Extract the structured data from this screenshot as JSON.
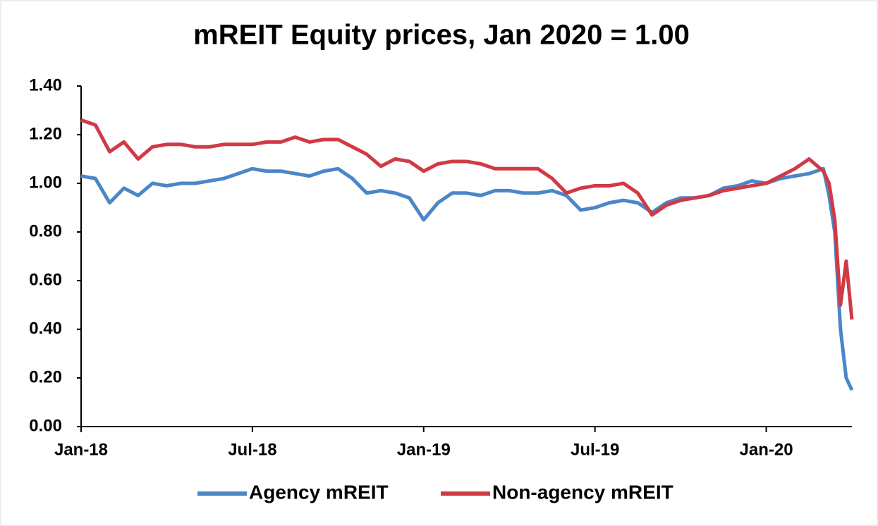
{
  "chart_data": {
    "type": "line",
    "title": "mREIT Equity prices, Jan 2020 = 1.00",
    "x": [
      0,
      0.5,
      1,
      1.5,
      2,
      2.5,
      3,
      3.5,
      4,
      4.5,
      5,
      5.5,
      6,
      6.5,
      7,
      7.5,
      8,
      8.5,
      9,
      9.5,
      10,
      10.5,
      11,
      11.5,
      12,
      12.5,
      13,
      13.5,
      14,
      14.5,
      15,
      15.5,
      16,
      16.5,
      17,
      17.5,
      18,
      18.5,
      19,
      19.5,
      20,
      20.5,
      21,
      21.5,
      22,
      22.5,
      23,
      23.5,
      24,
      24.5,
      25,
      25.5,
      26,
      26.2,
      26.4,
      26.6,
      26.8,
      27
    ],
    "series": [
      {
        "name": "Agency mREIT",
        "color": "#4a86c8",
        "values": [
          1.03,
          1.02,
          0.92,
          0.98,
          0.95,
          1.0,
          0.99,
          1.0,
          1.0,
          1.01,
          1.02,
          1.04,
          1.06,
          1.05,
          1.05,
          1.04,
          1.03,
          1.05,
          1.06,
          1.02,
          0.96,
          0.97,
          0.96,
          0.94,
          0.85,
          0.92,
          0.96,
          0.96,
          0.95,
          0.97,
          0.97,
          0.96,
          0.96,
          0.97,
          0.95,
          0.89,
          0.9,
          0.92,
          0.93,
          0.92,
          0.88,
          0.92,
          0.94,
          0.94,
          0.95,
          0.98,
          0.99,
          1.01,
          1.0,
          1.02,
          1.03,
          1.04,
          1.06,
          0.95,
          0.8,
          0.4,
          0.2,
          0.15
        ]
      },
      {
        "name": "Non-agency mREIT",
        "color": "#d13a45",
        "values": [
          1.26,
          1.24,
          1.13,
          1.17,
          1.1,
          1.15,
          1.16,
          1.16,
          1.15,
          1.15,
          1.16,
          1.16,
          1.16,
          1.17,
          1.17,
          1.19,
          1.17,
          1.18,
          1.18,
          1.15,
          1.12,
          1.07,
          1.1,
          1.09,
          1.05,
          1.08,
          1.09,
          1.09,
          1.08,
          1.06,
          1.06,
          1.06,
          1.06,
          1.02,
          0.96,
          0.98,
          0.99,
          0.99,
          1.0,
          0.96,
          0.87,
          0.91,
          0.93,
          0.94,
          0.95,
          0.97,
          0.98,
          0.99,
          1.0,
          1.03,
          1.06,
          1.1,
          1.05,
          1.0,
          0.85,
          0.5,
          0.68,
          0.44
        ]
      }
    ],
    "xlim": [
      0,
      27
    ],
    "xticks": [
      {
        "value": 0,
        "label": "Jan-18"
      },
      {
        "value": 6,
        "label": "Jul-18"
      },
      {
        "value": 12,
        "label": "Jan-19"
      },
      {
        "value": 18,
        "label": "Jul-19"
      },
      {
        "value": 24,
        "label": "Jan-20"
      }
    ],
    "ylim": [
      0,
      1.4
    ],
    "yticks": [
      {
        "value": 0,
        "label": "0.00"
      },
      {
        "value": 0.2,
        "label": "0.20"
      },
      {
        "value": 0.4,
        "label": "0.40"
      },
      {
        "value": 0.6,
        "label": "0.60"
      },
      {
        "value": 0.8,
        "label": "0.80"
      },
      {
        "value": 1,
        "label": "1.00"
      },
      {
        "value": 1.2,
        "label": "1.20"
      },
      {
        "value": 1.4,
        "label": "1.40"
      }
    ],
    "grid": false,
    "legend": "bottom"
  }
}
